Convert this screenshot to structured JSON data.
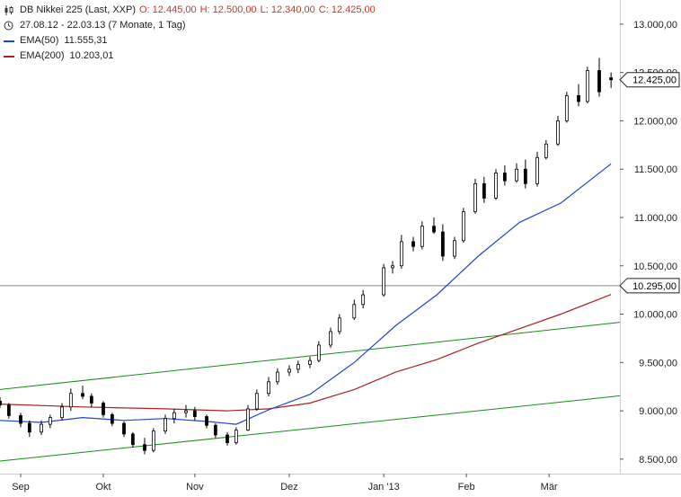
{
  "legend": {
    "title": "DB Nikkei 225 (Last, XXP)",
    "ohlc": {
      "o": "O: 12.445,00",
      "h": "H: 12.500,00",
      "l": "L: 12.340,00",
      "c": "C: 12.425,00"
    },
    "period": "27.08.12 - 22.03.13 (7 Monate, 1 Tag)",
    "icons": {
      "title": "candlestick-icon",
      "period": "clock-icon"
    },
    "ema50": {
      "label": "EMA(50)",
      "value": "11.555,31",
      "color": "#2244cc"
    },
    "ema200": {
      "label": "EMA(200)",
      "value": "10.203,01",
      "color": "#aa2222"
    }
  },
  "chart_data": {
    "type": "candlestick",
    "title": "DB Nikkei 225 (Last, XXP)",
    "ylim": [
      8350,
      13250
    ],
    "xlim": [
      "2012-08-27",
      "2013-03-25"
    ],
    "y_ticks": [
      {
        "value": 8500,
        "label": "8.500,00"
      },
      {
        "value": 9000,
        "label": "9.000,00"
      },
      {
        "value": 9500,
        "label": "9.500,00"
      },
      {
        "value": 10000,
        "label": "10.000,00"
      },
      {
        "value": 10500,
        "label": "10.500,00"
      },
      {
        "value": 11000,
        "label": "11.000,00"
      },
      {
        "value": 11500,
        "label": "11.500,00"
      },
      {
        "value": 12000,
        "label": "12.000,00"
      },
      {
        "value": 12500,
        "label": "12.500,00"
      },
      {
        "value": 13000,
        "label": "13.000,00"
      }
    ],
    "x_ticks": [
      {
        "date": "2012-09-03",
        "label": "Sep"
      },
      {
        "date": "2012-10-01",
        "label": "Okt"
      },
      {
        "date": "2012-11-01",
        "label": "Nov"
      },
      {
        "date": "2012-12-03",
        "label": "Dez"
      },
      {
        "date": "2013-01-04",
        "label": "Jan '13"
      },
      {
        "date": "2013-02-01",
        "label": "Feb"
      },
      {
        "date": "2013-03-01",
        "label": "Mär"
      }
    ],
    "price_markers": [
      {
        "value": 12425,
        "label": "12.425,00"
      },
      {
        "value": 10295,
        "label": "10.295,00"
      }
    ],
    "horizontal_line": 10295,
    "trend_lines": [
      {
        "name": "upper channel",
        "points": [
          [
            "2012-08-27",
            9220
          ],
          [
            "2013-03-25",
            9915
          ]
        ],
        "color": "#1a8a1a"
      },
      {
        "name": "lower channel",
        "points": [
          [
            "2012-08-27",
            8480
          ],
          [
            "2013-03-25",
            9155
          ]
        ],
        "color": "#1a8a1a"
      }
    ],
    "ema50": [
      [
        "2012-08-27",
        8900
      ],
      [
        "2012-09-10",
        8880
      ],
      [
        "2012-09-24",
        8930
      ],
      [
        "2012-10-08",
        8900
      ],
      [
        "2012-10-22",
        8920
      ],
      [
        "2012-11-05",
        8890
      ],
      [
        "2012-11-15",
        8860
      ],
      [
        "2012-11-26",
        9010
      ],
      [
        "2012-12-10",
        9170
      ],
      [
        "2012-12-25",
        9500
      ],
      [
        "2013-01-08",
        9880
      ],
      [
        "2013-01-22",
        10200
      ],
      [
        "2013-02-05",
        10600
      ],
      [
        "2013-02-19",
        10950
      ],
      [
        "2013-03-05",
        11150
      ],
      [
        "2013-03-22",
        11555
      ]
    ],
    "ema200": [
      [
        "2012-08-27",
        9070
      ],
      [
        "2012-09-24",
        9040
      ],
      [
        "2012-10-22",
        9020
      ],
      [
        "2012-11-12",
        9000
      ],
      [
        "2012-11-26",
        9020
      ],
      [
        "2012-12-10",
        9080
      ],
      [
        "2012-12-25",
        9220
      ],
      [
        "2013-01-08",
        9400
      ],
      [
        "2013-01-22",
        9530
      ],
      [
        "2013-02-05",
        9700
      ],
      [
        "2013-02-19",
        9850
      ],
      [
        "2013-03-05",
        10000
      ],
      [
        "2013-03-22",
        10203
      ]
    ],
    "candles": [
      [
        "2012-08-27",
        9100,
        9140,
        9030,
        9060
      ],
      [
        "2012-08-30",
        9060,
        9080,
        8920,
        8950
      ],
      [
        "2012-09-03",
        8950,
        8980,
        8830,
        8870
      ],
      [
        "2012-09-06",
        8870,
        8900,
        8730,
        8780
      ],
      [
        "2012-09-10",
        8780,
        8900,
        8750,
        8860
      ],
      [
        "2012-09-13",
        8860,
        8960,
        8820,
        8930
      ],
      [
        "2012-09-17",
        8930,
        9080,
        8900,
        9040
      ],
      [
        "2012-09-20",
        9040,
        9230,
        9000,
        9180
      ],
      [
        "2012-09-24",
        9180,
        9260,
        9120,
        9150
      ],
      [
        "2012-09-27",
        9150,
        9180,
        9040,
        9080
      ],
      [
        "2012-10-01",
        9080,
        9100,
        8930,
        8960
      ],
      [
        "2012-10-04",
        8960,
        8980,
        8840,
        8870
      ],
      [
        "2012-10-08",
        8870,
        8890,
        8730,
        8760
      ],
      [
        "2012-10-11",
        8760,
        8780,
        8620,
        8650
      ],
      [
        "2012-10-15",
        8650,
        8720,
        8550,
        8590
      ],
      [
        "2012-10-18",
        8590,
        8820,
        8570,
        8790
      ],
      [
        "2012-10-22",
        8790,
        8960,
        8760,
        8920
      ],
      [
        "2012-10-25",
        8920,
        9020,
        8870,
        8980
      ],
      [
        "2012-10-29",
        8980,
        9060,
        8930,
        9000
      ],
      [
        "2012-11-01",
        9000,
        9040,
        8900,
        8940
      ],
      [
        "2012-11-05",
        8940,
        8960,
        8820,
        8850
      ],
      [
        "2012-11-08",
        8850,
        8870,
        8720,
        8750
      ],
      [
        "2012-11-12",
        8750,
        8780,
        8640,
        8670
      ],
      [
        "2012-11-15",
        8670,
        8830,
        8650,
        8800
      ],
      [
        "2012-11-19",
        8800,
        9060,
        8790,
        9020
      ],
      [
        "2012-11-22",
        9020,
        9220,
        9000,
        9180
      ],
      [
        "2012-11-26",
        9180,
        9350,
        9150,
        9300
      ],
      [
        "2012-11-29",
        9300,
        9440,
        9270,
        9400
      ],
      [
        "2012-12-03",
        9400,
        9470,
        9360,
        9430
      ],
      [
        "2012-12-06",
        9430,
        9520,
        9390,
        9480
      ],
      [
        "2012-12-10",
        9480,
        9560,
        9440,
        9520
      ],
      [
        "2012-12-13",
        9520,
        9720,
        9500,
        9680
      ],
      [
        "2012-12-17",
        9680,
        9860,
        9650,
        9820
      ],
      [
        "2012-12-20",
        9820,
        10000,
        9790,
        9960
      ],
      [
        "2012-12-25",
        9960,
        10150,
        9940,
        10100
      ],
      [
        "2012-12-28",
        10100,
        10250,
        10060,
        10200
      ],
      [
        "2013-01-04",
        10200,
        10520,
        10180,
        10480
      ],
      [
        "2013-01-07",
        10480,
        10550,
        10420,
        10500
      ],
      [
        "2013-01-10",
        10500,
        10820,
        10470,
        10750
      ],
      [
        "2013-01-14",
        10750,
        10800,
        10650,
        10700
      ],
      [
        "2013-01-17",
        10700,
        10960,
        10670,
        10910
      ],
      [
        "2013-01-21",
        10910,
        11000,
        10830,
        10850
      ],
      [
        "2013-01-24",
        10850,
        10930,
        10550,
        10600
      ],
      [
        "2013-01-28",
        10600,
        10800,
        10570,
        10760
      ],
      [
        "2013-01-31",
        10760,
        11100,
        10740,
        11060
      ],
      [
        "2013-02-04",
        11060,
        11400,
        11040,
        11350
      ],
      [
        "2013-02-07",
        11350,
        11420,
        11150,
        11200
      ],
      [
        "2013-02-11",
        11200,
        11500,
        11180,
        11460
      ],
      [
        "2013-02-14",
        11460,
        11540,
        11330,
        11380
      ],
      [
        "2013-02-18",
        11380,
        11560,
        11360,
        11500
      ],
      [
        "2013-02-21",
        11500,
        11600,
        11300,
        11350
      ],
      [
        "2013-02-25",
        11350,
        11680,
        11320,
        11620
      ],
      [
        "2013-02-28",
        11620,
        11800,
        11600,
        11760
      ],
      [
        "2013-03-04",
        11760,
        12050,
        11740,
        12000
      ],
      [
        "2013-03-07",
        12000,
        12300,
        11980,
        12260
      ],
      [
        "2013-03-11",
        12260,
        12380,
        12150,
        12200
      ],
      [
        "2013-03-14",
        12200,
        12560,
        12180,
        12520
      ],
      [
        "2013-03-18",
        12520,
        12650,
        12250,
        12300
      ],
      [
        "2013-03-22",
        12445,
        12500,
        12340,
        12425
      ]
    ]
  }
}
